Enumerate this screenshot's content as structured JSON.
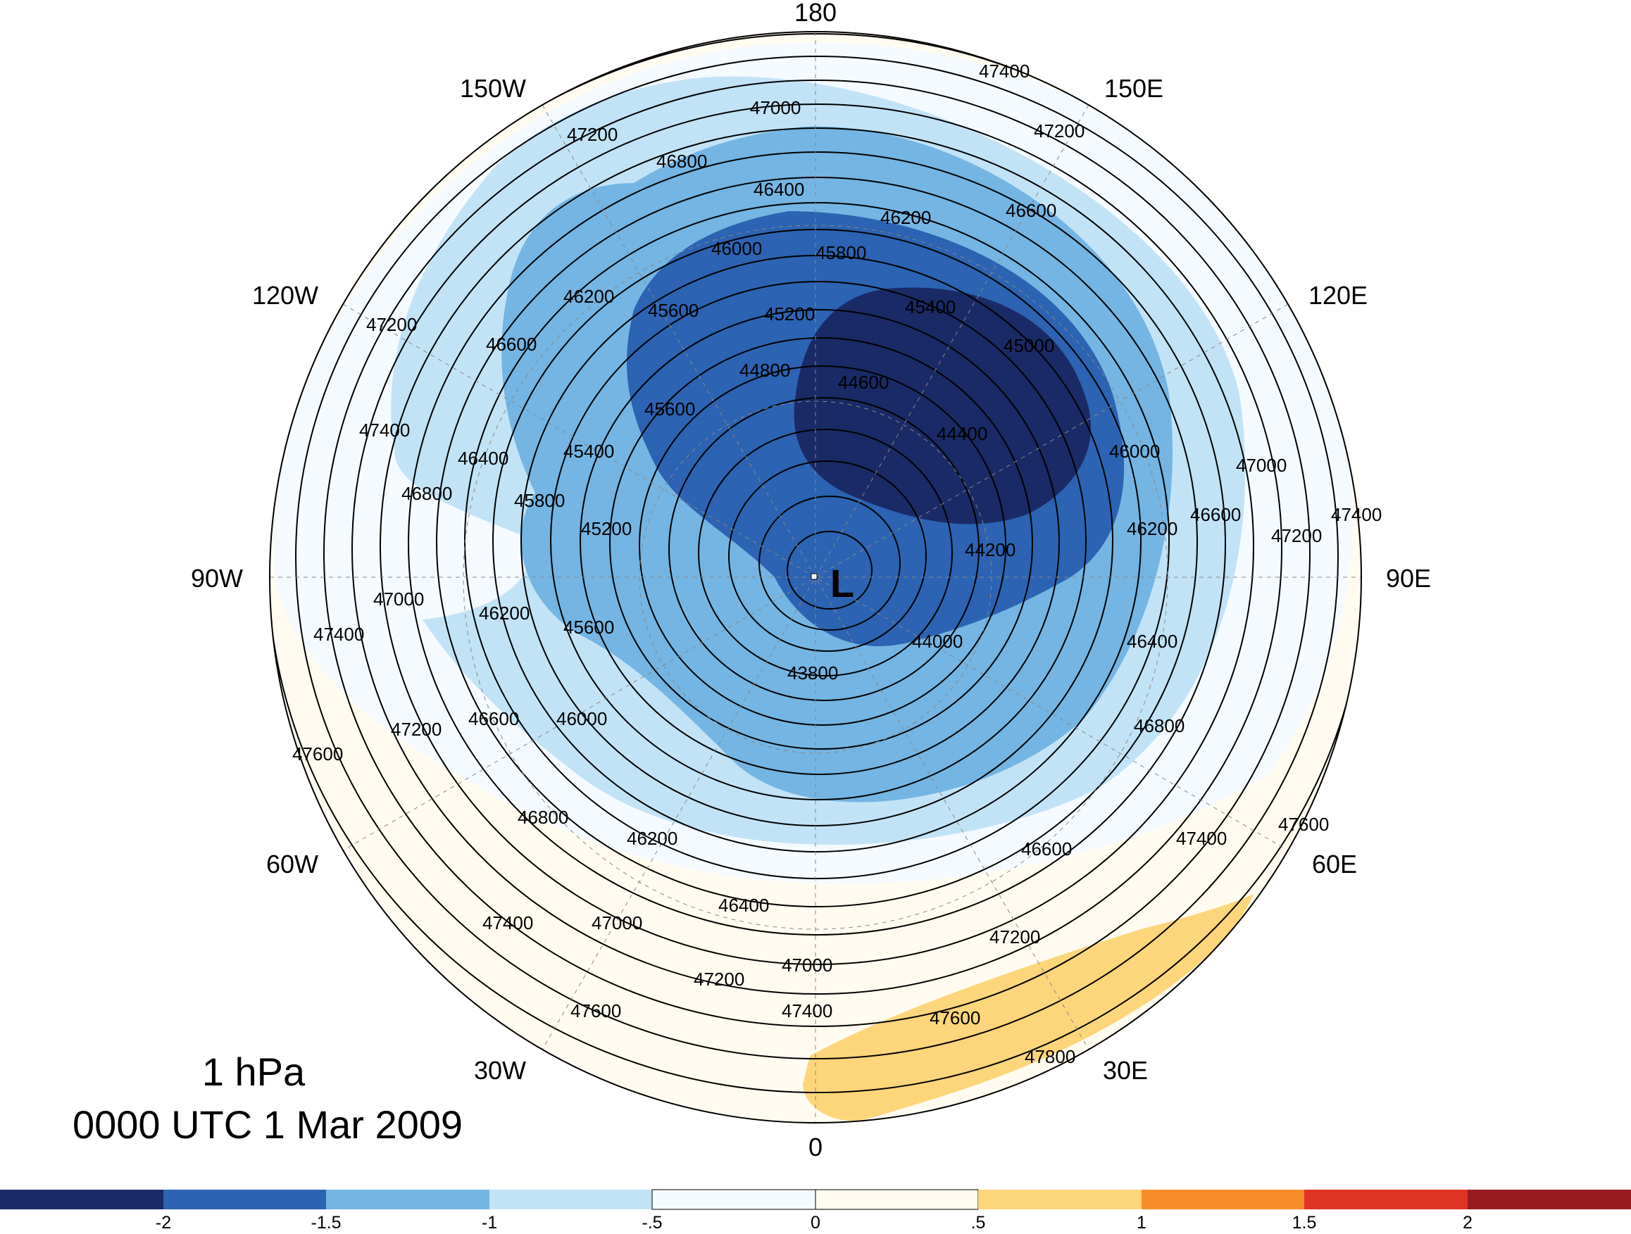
{
  "title": {
    "level": "1 hPa",
    "time": "0000 UTC 1 Mar 2009"
  },
  "longitude_labels": {
    "lon_180": "180",
    "lon_150w": "150W",
    "lon_150e": "150E",
    "lon_120w": "120W",
    "lon_120e": "120E",
    "lon_90w": "90W",
    "lon_90e": "90E",
    "lon_60w": "60W",
    "lon_60e": "60E",
    "lon_30w": "30W",
    "lon_30e": "30E",
    "lon_0": "0"
  },
  "low_center_label": "L",
  "contour_labels": [
    "47400",
    "47000",
    "47200",
    "46800",
    "46400",
    "46200",
    "46600",
    "46000",
    "45800",
    "45400",
    "45600",
    "45200",
    "44800",
    "44600",
    "44400",
    "45000",
    "44200",
    "44000",
    "43800",
    "47600",
    "47800"
  ],
  "colorbar": {
    "ticks": [
      "-2",
      "-1.5",
      "-1",
      "-.5",
      "0",
      ".5",
      "1",
      "1.5",
      "2"
    ],
    "colors": [
      "#1a2a66",
      "#2c63b2",
      "#74b5e3",
      "#c2e3f6",
      "#f5faff",
      "#fffbf0",
      "#fdd57a",
      "#f78c2b",
      "#e03424",
      "#961c1f"
    ]
  }
}
